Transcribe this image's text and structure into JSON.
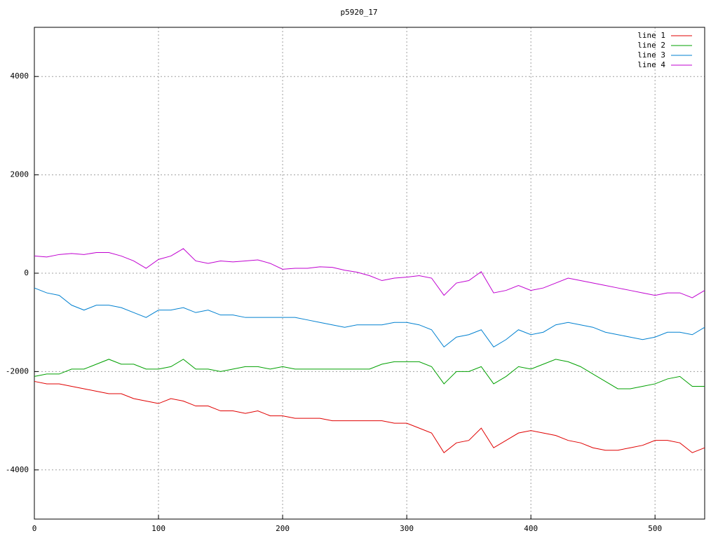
{
  "chart_data": {
    "type": "line",
    "title": "p5920_17",
    "x": [
      0,
      10,
      20,
      30,
      40,
      50,
      60,
      70,
      80,
      90,
      100,
      110,
      120,
      130,
      140,
      150,
      160,
      170,
      180,
      190,
      200,
      210,
      220,
      230,
      240,
      250,
      260,
      270,
      280,
      290,
      300,
      310,
      320,
      330,
      340,
      350,
      360,
      370,
      380,
      390,
      400,
      410,
      420,
      430,
      440,
      450,
      460,
      470,
      480,
      490,
      500,
      510,
      520,
      530,
      540
    ],
    "series": [
      {
        "name": "line 1",
        "color": "#e00000",
        "values": [
          -2200,
          -2250,
          -2250,
          -2300,
          -2350,
          -2400,
          -2450,
          -2450,
          -2550,
          -2600,
          -2650,
          -2550,
          -2600,
          -2700,
          -2700,
          -2800,
          -2800,
          -2850,
          -2800,
          -2900,
          -2900,
          -2950,
          -2950,
          -2950,
          -3000,
          -3000,
          -3000,
          -3000,
          -3000,
          -3050,
          -3050,
          -3150,
          -3250,
          -3650,
          -3450,
          -3400,
          -3150,
          -3550,
          -3400,
          -3250,
          -3200,
          -3250,
          -3300,
          -3400,
          -3450,
          -3550,
          -3600,
          -3600,
          -3550,
          -3500,
          -3400,
          -3400,
          -3450,
          -3650,
          -3550
        ]
      },
      {
        "name": "line 2",
        "color": "#00a000",
        "values": [
          -2100,
          -2050,
          -2050,
          -1950,
          -1950,
          -1850,
          -1750,
          -1850,
          -1850,
          -1950,
          -1950,
          -1900,
          -1750,
          -1950,
          -1950,
          -2000,
          -1950,
          -1900,
          -1900,
          -1950,
          -1900,
          -1950,
          -1950,
          -1950,
          -1950,
          -1950,
          -1950,
          -1950,
          -1850,
          -1800,
          -1800,
          -1800,
          -1900,
          -2250,
          -2000,
          -2000,
          -1900,
          -2250,
          -2100,
          -1900,
          -1950,
          -1850,
          -1750,
          -1800,
          -1900,
          -2050,
          -2200,
          -2350,
          -2350,
          -2300,
          -2250,
          -2150,
          -2100,
          -2300,
          -2300
        ]
      },
      {
        "name": "line 3",
        "color": "#0080d0",
        "values": [
          -300,
          -400,
          -450,
          -650,
          -750,
          -650,
          -650,
          -700,
          -800,
          -900,
          -750,
          -750,
          -700,
          -800,
          -750,
          -850,
          -850,
          -900,
          -900,
          -900,
          -900,
          -900,
          -950,
          -1000,
          -1050,
          -1100,
          -1050,
          -1050,
          -1050,
          -1000,
          -1000,
          -1050,
          -1150,
          -1500,
          -1300,
          -1250,
          -1150,
          -1500,
          -1350,
          -1150,
          -1250,
          -1200,
          -1050,
          -1000,
          -1050,
          -1100,
          -1200,
          -1250,
          -1300,
          -1350,
          -1300,
          -1200,
          -1200,
          -1250,
          -1100
        ]
      },
      {
        "name": "line 4",
        "color": "#c000d0",
        "values": [
          350,
          330,
          380,
          400,
          380,
          420,
          420,
          350,
          250,
          100,
          280,
          350,
          500,
          250,
          200,
          250,
          230,
          250,
          270,
          200,
          80,
          100,
          100,
          130,
          120,
          60,
          20,
          -50,
          -150,
          -100,
          -80,
          -50,
          -100,
          -450,
          -200,
          -150,
          30,
          -400,
          -350,
          -250,
          -350,
          -300,
          -200,
          -100,
          -150,
          -200,
          -250,
          -300,
          -350,
          -400,
          -450,
          -400,
          -400,
          -500,
          -350
        ]
      }
    ],
    "xlim": [
      0,
      540
    ],
    "ylim": [
      -5000,
      5000
    ],
    "xticks": [
      0,
      100,
      200,
      300,
      400,
      500
    ],
    "yticks": [
      -4000,
      -2000,
      0,
      2000,
      4000
    ],
    "grid": true,
    "legend": "top-right"
  }
}
